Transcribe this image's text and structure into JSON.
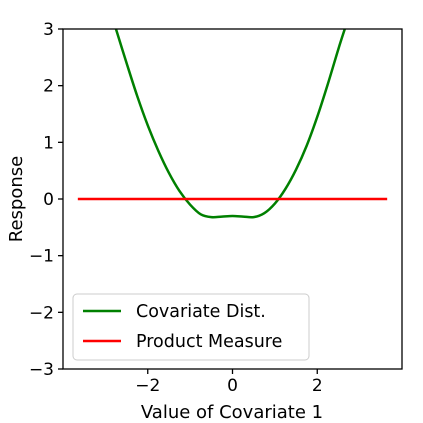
{
  "chart_data": {
    "type": "line",
    "xlabel": "Value of Covariate 1",
    "ylabel": "Response",
    "xlim": [
      -4,
      4
    ],
    "ylim": [
      -3,
      3
    ],
    "xticks": [
      -2,
      0,
      2
    ],
    "xtick_labels": [
      "−2",
      "0",
      "2"
    ],
    "yticks": [
      -3,
      -2,
      -1,
      0,
      1,
      2,
      3
    ],
    "ytick_labels": [
      "−3",
      "−2",
      "−1",
      "0",
      "1",
      "2",
      "3"
    ],
    "grid": false,
    "legend_position": "lower-left",
    "series": [
      {
        "name": "Covariate Dist.",
        "color": "#008000",
        "x": [
          -2.75,
          -2.5,
          -2.25,
          -2.0,
          -1.75,
          -1.5,
          -1.25,
          -1.0,
          -0.75,
          -0.5,
          -0.25,
          0.0,
          0.25,
          0.5,
          0.75,
          1.0,
          1.25,
          1.5,
          1.75,
          2.0,
          2.25,
          2.5,
          2.65
        ],
        "y": [
          3.0,
          2.4,
          1.82,
          1.3,
          0.85,
          0.46,
          0.14,
          -0.1,
          -0.27,
          -0.32,
          -0.31,
          -0.3,
          -0.31,
          -0.32,
          -0.25,
          -0.08,
          0.18,
          0.52,
          0.94,
          1.45,
          2.03,
          2.65,
          3.0
        ]
      },
      {
        "name": "Product Measure",
        "color": "#ff0000",
        "x": [
          -3.65,
          3.65
        ],
        "y": [
          0.0,
          0.0
        ]
      }
    ]
  }
}
